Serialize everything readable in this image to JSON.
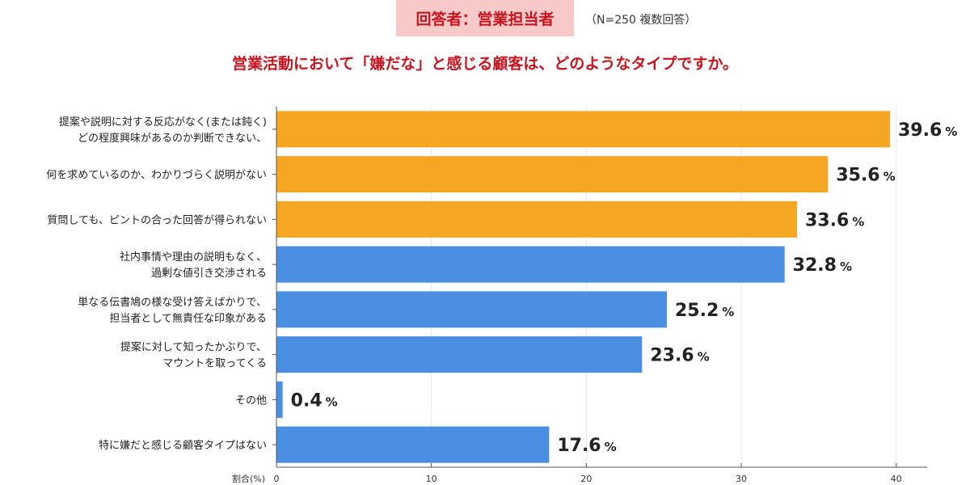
{
  "header": {
    "badge": "回答者：営業担当者",
    "note": "（N=250 複数回答）"
  },
  "chart_data": {
    "type": "bar",
    "orientation": "horizontal",
    "title": "営業活動において「嫌だな」と感じる顧客は、どのようなタイプですか。",
    "categories": [
      [
        "提案や説明に対する反応がなく(または鈍く)",
        "どの程度興味があるのか判断できない、"
      ],
      [
        "何を求めているのか、わかりづらく説明がない"
      ],
      [
        "質問しても、ピントの合った回答が得られない"
      ],
      [
        "社内事情や理由の説明もなく、",
        "過剰な値引き交渉される"
      ],
      [
        "単なる伝書鳩の様な受け答えばかりで、",
        "担当者として無責任な印象がある"
      ],
      [
        "提案に対して知ったかぶりで、",
        "マウントを取ってくる"
      ],
      [
        "その他"
      ],
      [
        "特に嫌だと感じる顧客タイプはない"
      ]
    ],
    "values": [
      39.6,
      35.6,
      33.6,
      32.8,
      25.2,
      23.6,
      0.4,
      17.6
    ],
    "value_labels": [
      "39.6",
      "35.6",
      "33.6",
      "32.8",
      "25.2",
      "23.6",
      "0.4",
      "17.6"
    ],
    "value_unit": "%",
    "bar_colors": [
      "#f5a623",
      "#f5a623",
      "#f5a623",
      "#4a8fe2",
      "#4a8fe2",
      "#4a8fe2",
      "#4a8fe2",
      "#4a8fe2"
    ],
    "xlabel": "割合(%)",
    "xlim": [
      0,
      42
    ],
    "xticks": [
      0,
      10,
      20,
      30,
      40
    ],
    "grid": true,
    "grid_color": "#e8e8e8",
    "axis_color": "#555555"
  }
}
